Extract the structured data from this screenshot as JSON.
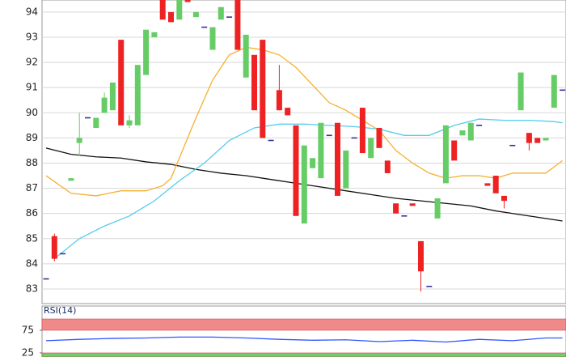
{
  "chart_data": [
    {
      "type": "candlestick",
      "categories": [
        null,
        null,
        null,
        null,
        null,
        null,
        null,
        null,
        null,
        null,
        null,
        null,
        null,
        null,
        null,
        null,
        null,
        null,
        null,
        null,
        null,
        null,
        null,
        null,
        null,
        null,
        null,
        null,
        null,
        null,
        null,
        null,
        null,
        null,
        null,
        null,
        null,
        null,
        null,
        null,
        null,
        null,
        null,
        null,
        null,
        null,
        null,
        null,
        null,
        null,
        null,
        null,
        null,
        null,
        null,
        null,
        null,
        null,
        null,
        null,
        null,
        null,
        null
      ],
      "open": [
        83.4,
        85.1,
        84.4,
        87.3,
        88.8,
        89.8,
        89.4,
        90.0,
        90.1,
        92.9,
        89.5,
        89.5,
        91.5,
        93.0,
        94.5,
        94.0,
        93.7,
        94.5,
        93.8,
        93.4,
        92.5,
        93.7,
        93.8,
        94.5,
        91.4,
        92.3,
        92.9,
        88.9,
        90.9,
        90.2,
        89.5,
        85.6,
        87.8,
        87.4,
        89.1,
        89.6,
        87.0,
        89.0,
        90.2,
        88.2,
        89.4,
        88.1,
        86.4,
        85.9,
        86.4,
        84.9,
        83.1,
        85.8,
        87.2,
        88.9,
        89.1,
        88.9,
        89.5,
        87.2,
        87.5,
        86.7,
        88.7,
        90.1,
        89.2,
        89.0,
        88.9,
        90.2,
        90.9
      ],
      "high": [
        83.4,
        85.2,
        84.4,
        87.4,
        90.0,
        89.8,
        89.8,
        90.8,
        91.2,
        92.9,
        89.9,
        91.9,
        93.3,
        93.2,
        94.5,
        94.0,
        94.5,
        94.5,
        94.0,
        93.4,
        93.4,
        94.2,
        93.8,
        94.5,
        93.1,
        92.3,
        92.9,
        88.9,
        91.9,
        90.2,
        89.5,
        88.7,
        88.2,
        89.6,
        89.1,
        89.6,
        88.5,
        89.0,
        90.2,
        89.0,
        89.4,
        88.1,
        86.4,
        85.9,
        86.4,
        84.9,
        83.1,
        86.6,
        89.5,
        88.9,
        89.3,
        89.6,
        89.5,
        87.2,
        87.5,
        86.7,
        88.7,
        91.6,
        89.2,
        89.0,
        89.0,
        91.5,
        90.9
      ],
      "low": [
        83.4,
        84.1,
        84.4,
        87.3,
        88.3,
        89.8,
        89.4,
        90.0,
        90.1,
        89.5,
        89.4,
        89.5,
        91.5,
        93.0,
        93.7,
        93.6,
        93.7,
        94.4,
        93.8,
        93.4,
        92.5,
        93.7,
        93.8,
        92.5,
        91.4,
        90.1,
        89.0,
        88.9,
        90.1,
        89.9,
        85.9,
        85.6,
        87.8,
        87.4,
        89.1,
        86.7,
        87.0,
        89.0,
        88.4,
        88.2,
        88.6,
        87.6,
        86.0,
        85.9,
        86.3,
        82.9,
        83.1,
        85.8,
        87.2,
        88.1,
        89.1,
        88.9,
        89.5,
        87.1,
        86.8,
        86.2,
        88.7,
        90.1,
        88.5,
        88.8,
        88.9,
        90.2,
        90.9
      ],
      "close": [
        83.4,
        84.2,
        84.4,
        87.4,
        89.0,
        89.8,
        89.8,
        90.6,
        91.2,
        89.5,
        89.7,
        91.9,
        93.3,
        93.2,
        93.7,
        93.6,
        94.5,
        94.4,
        94.0,
        93.4,
        93.4,
        94.2,
        93.8,
        92.5,
        93.1,
        90.1,
        89.0,
        88.9,
        90.1,
        89.9,
        85.9,
        88.7,
        88.2,
        89.6,
        89.1,
        86.7,
        88.5,
        89.0,
        88.4,
        89.0,
        88.6,
        87.6,
        86.0,
        85.9,
        86.3,
        83.7,
        83.1,
        86.6,
        89.5,
        88.1,
        89.3,
        89.6,
        89.5,
        87.1,
        86.8,
        86.5,
        88.7,
        91.6,
        88.8,
        88.8,
        89.0,
        91.5,
        90.9
      ],
      "up_color": "#66cc66",
      "down_color": "#ee2222",
      "flat_color": "#333399",
      "series": [
        {
          "color": "#111111",
          "x": [
            0,
            3,
            6,
            9,
            12,
            15,
            18,
            21,
            24,
            27,
            30,
            33,
            36,
            39,
            42,
            45,
            48,
            51,
            54,
            57,
            60,
            62
          ],
          "values": [
            88.6,
            88.35,
            88.25,
            88.2,
            88.05,
            87.95,
            87.75,
            87.6,
            87.5,
            87.35,
            87.2,
            87.05,
            86.9,
            86.75,
            86.6,
            86.5,
            86.4,
            86.3,
            86.1,
            85.95,
            85.8,
            85.7
          ]
        },
        {
          "color": "#55ccee",
          "x": [
            1,
            4,
            7,
            10,
            13,
            16,
            19,
            22,
            25,
            28,
            31,
            34,
            37,
            40,
            43,
            46,
            49,
            52,
            55,
            58,
            61,
            62
          ],
          "values": [
            84.2,
            85.0,
            85.5,
            85.9,
            86.5,
            87.3,
            88.0,
            88.9,
            89.4,
            89.55,
            89.55,
            89.5,
            89.45,
            89.35,
            89.1,
            89.1,
            89.5,
            89.75,
            89.7,
            89.7,
            89.65,
            89.6
          ]
        },
        {
          "color": "#f5b030",
          "x": [
            0,
            3,
            6,
            9,
            12,
            14,
            15,
            16,
            18,
            20,
            22,
            24,
            26,
            28,
            30,
            32,
            34,
            36,
            38,
            40,
            42,
            44,
            46,
            48,
            50,
            52,
            54,
            56,
            58,
            60,
            62
          ],
          "values": [
            87.5,
            86.8,
            86.7,
            86.9,
            86.9,
            87.1,
            87.4,
            88.2,
            89.8,
            91.3,
            92.3,
            92.6,
            92.5,
            92.3,
            91.8,
            91.1,
            90.4,
            90.1,
            89.7,
            89.3,
            88.5,
            88.0,
            87.6,
            87.4,
            87.5,
            87.5,
            87.4,
            87.6,
            87.6,
            87.6,
            88.1
          ]
        }
      ],
      "ylim": [
        82.42,
        94.48
      ],
      "yticks": [
        83,
        84,
        85,
        86,
        87,
        88,
        89,
        90,
        91,
        92,
        93,
        94
      ],
      "grid": true
    },
    {
      "type": "line",
      "title": "RSI(14)",
      "x": [
        0,
        4,
        8,
        12,
        16,
        20,
        24,
        28,
        32,
        36,
        40,
        44,
        48,
        52,
        56,
        60,
        62
      ],
      "values": [
        52,
        55,
        57,
        58,
        60,
        60,
        58,
        55,
        53,
        54,
        50,
        53,
        49,
        55,
        52,
        58,
        58
      ],
      "color": "#3355ff",
      "bands": [
        {
          "from": 75,
          "to": 100,
          "color": "#f08a8a"
        },
        {
          "from": 0,
          "to": 25,
          "color": "#6fcc6f"
        }
      ],
      "ylim": [
        16,
        100
      ],
      "yticks": [
        75,
        25
      ]
    }
  ]
}
